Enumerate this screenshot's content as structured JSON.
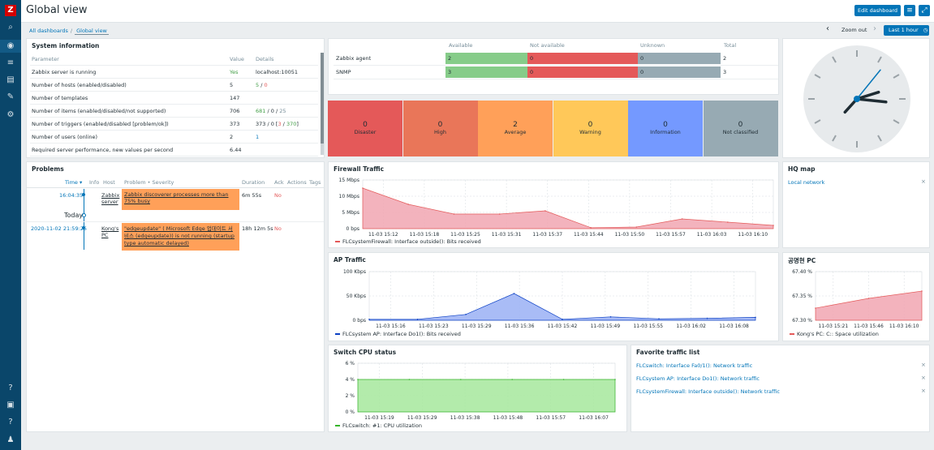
{
  "sidebar": {
    "logo": "Z",
    "items": [
      "⌕",
      "◉",
      "≡",
      "▤",
      "✎",
      "⚙"
    ],
    "bottom": [
      "?",
      "▣",
      "?",
      "♟"
    ]
  },
  "header": {
    "title": "Global view",
    "edit_label": "Edit dashboard",
    "list_icon": "≡",
    "fullscreen_icon": "⤢"
  },
  "breadcrumb": {
    "all": "All dashboards",
    "sep": "/",
    "current": "Global view"
  },
  "timebar": {
    "prev": "‹",
    "zoom": "Zoom out",
    "next": "›",
    "period": "Last 1 hour",
    "clock_icon": "◷"
  },
  "system_info": {
    "title": "System information",
    "head": {
      "param": "Parameter",
      "value": "Value",
      "details": "Details"
    },
    "rows": [
      {
        "param": "Zabbix server is running",
        "value": "Yes",
        "d1": "localhost:10051",
        "d2": "",
        "d3": "",
        "d4": "",
        "d5": ""
      },
      {
        "param": "Number of hosts (enabled/disabled)",
        "value": "5",
        "d1": "5",
        "d2": " / ",
        "d3": "0",
        "d4": "",
        "d5": ""
      },
      {
        "param": "Number of templates",
        "value": "147",
        "d1": "",
        "d2": "",
        "d3": "",
        "d4": "",
        "d5": ""
      },
      {
        "param": "Number of items (enabled/disabled/not supported)",
        "value": "706",
        "d1": "681",
        "d2": " / 0 / ",
        "d3": "25",
        "d4": "",
        "d5": ""
      },
      {
        "param": "Number of triggers (enabled/disabled [problem/ok])",
        "value": "373",
        "d1": "373 / 0 [",
        "d2": "3",
        "d3": " / ",
        "d4": "370",
        "d5": "]"
      },
      {
        "param": "Number of users (online)",
        "value": "2",
        "d1": "1",
        "d2": "",
        "d3": "",
        "d4": "",
        "d5": ""
      },
      {
        "param": "Required server performance, new values per second",
        "value": "6.44",
        "d1": "",
        "d2": "",
        "d3": "",
        "d4": "",
        "d5": ""
      }
    ]
  },
  "host_avail": {
    "cols": [
      "Available",
      "Not available",
      "Unknown",
      "Total"
    ],
    "rows": [
      {
        "name": "Zabbix agent",
        "available": "2",
        "not_available": "0",
        "unknown": "0",
        "total": "2"
      },
      {
        "name": "SNMP",
        "available": "3",
        "not_available": "0",
        "unknown": "0",
        "total": "3"
      }
    ]
  },
  "severity": [
    {
      "count": "0",
      "label": "Disaster",
      "color": "#e45959"
    },
    {
      "count": "0",
      "label": "High",
      "color": "#e97659"
    },
    {
      "count": "2",
      "label": "Average",
      "color": "#ffa059"
    },
    {
      "count": "0",
      "label": "Warning",
      "color": "#ffc859"
    },
    {
      "count": "0",
      "label": "Information",
      "color": "#7499ff"
    },
    {
      "count": "0",
      "label": "Not classified",
      "color": "#97aab3"
    }
  ],
  "clock": {
    "hour": 3,
    "minute": 12,
    "second": 7
  },
  "problems": {
    "title": "Problems",
    "head": {
      "time": "Time ▾",
      "info": "Info",
      "host": "Host",
      "problem": "Problem • Severity",
      "duration": "Duration",
      "ack": "Ack",
      "actions": "Actions",
      "tags": "Tags"
    },
    "today": "Today",
    "rows": [
      {
        "time": "16:04:35",
        "host": "Zabbix server",
        "problem": "Zabbix discoverer processes more than 75% busy",
        "duration": "6m 55s",
        "ack": "No"
      },
      {
        "time": "2020-11-02 21:59:25",
        "host": "Kong's PC",
        "problem": "\"edgeupdate\" ( Microsoft Edge 업데이트 서비스 (edgeupdate)) is not running (startup type automatic delayed)",
        "duration": "18h 12m 5s",
        "ack": "No"
      }
    ]
  },
  "firewall": {
    "title": "Firewall Traffic",
    "legend": "FLCsystemFirewall: Interface outside(): Bits received",
    "color": "#f1a6b2",
    "yticks": [
      "15 Mbps",
      "10 Mbps",
      "5 Mbps",
      "0 bps"
    ],
    "xticks": [
      "11-03 15:12",
      "11-03 15:18",
      "11-03 15:25",
      "11-03 15:31",
      "11-03 15:37",
      "11-03 15:44",
      "11-03 15:50",
      "11-03 15:57",
      "11-03 16:03",
      "11-03 16:10"
    ]
  },
  "hqmap": {
    "title": "HQ map",
    "link": "Local network",
    "close": "×"
  },
  "ap": {
    "title": "AP Traffic",
    "legend": "FLCsystem AP: Interface Do1(): Bits received",
    "color": "#9ab0f4",
    "yticks": [
      "100 Kbps",
      "50 Kbps",
      "0 bps"
    ],
    "xticks": [
      "11-03 15:16",
      "11-03 15:23",
      "11-03 15:29",
      "11-03 15:36",
      "11-03 15:42",
      "11-03 15:49",
      "11-03 15:55",
      "11-03 16:02",
      "11-03 16:08"
    ]
  },
  "kongpc": {
    "title": "공명현 PC",
    "legend": "Kong's PC: C:: Space utilization",
    "color": "#f1a6b2",
    "yticks": [
      "67.40 %",
      "67.35 %",
      "67.30 %"
    ],
    "xticks": [
      "11-03 15:21",
      "11-03 15:46",
      "11-03 16:10"
    ]
  },
  "cpu": {
    "title": "Switch CPU status",
    "legend": "FLCswitch: #1: CPU utilization",
    "color": "#a6e89c",
    "yticks": [
      "6 %",
      "4 %",
      "2 %",
      "0 %"
    ],
    "xticks": [
      "11-03 15:19",
      "11-03 15:29",
      "11-03 15:38",
      "11-03 15:48",
      "11-03 15:57",
      "11-03 16:07"
    ]
  },
  "fav": {
    "title": "Favorite traffic list",
    "items": [
      "FLCswitch: Interface Fa0/1(): Network traffic",
      "FLCsystem AP: Interface Do1(): Network traffic",
      "FLCsystemFirewall: Interface outside(): Network traffic"
    ],
    "close": "×"
  },
  "chart_data": [
    {
      "type": "area",
      "title": "Firewall Traffic",
      "x": [
        "11-03 15:12",
        "11-03 15:18",
        "11-03 15:25",
        "11-03 15:31",
        "11-03 15:37",
        "11-03 15:44",
        "11-03 15:50",
        "11-03 15:57",
        "11-03 16:03",
        "11-03 16:10"
      ],
      "series": [
        {
          "name": "FLCsystemFirewall: Interface outside(): Bits received",
          "values": [
            12.5,
            7.5,
            4.5,
            4.5,
            5.5,
            0.3,
            0.5,
            3.0,
            2.0,
            1.0
          ]
        }
      ],
      "yunit": "Mbps",
      "ylim": [
        0,
        15
      ]
    },
    {
      "type": "area",
      "title": "AP Traffic",
      "x": [
        "11-03 15:16",
        "11-03 15:23",
        "11-03 15:29",
        "11-03 15:36",
        "11-03 15:42",
        "11-03 15:49",
        "11-03 15:55",
        "11-03 16:02",
        "11-03 16:08"
      ],
      "series": [
        {
          "name": "FLCsystem AP: Interface Do1(): Bits received",
          "values": [
            2,
            2,
            12,
            55,
            2,
            7,
            3,
            4,
            6
          ]
        }
      ],
      "yunit": "Kbps",
      "ylim": [
        0,
        100
      ]
    },
    {
      "type": "area",
      "title": "공명현 PC",
      "x": [
        "11-03 15:21",
        "11-03 15:46",
        "11-03 16:10"
      ],
      "series": [
        {
          "name": "Kong's PC: C:: Space utilization",
          "values": [
            67.325,
            67.345,
            67.36
          ]
        }
      ],
      "yunit": "%",
      "ylim": [
        67.3,
        67.4
      ]
    },
    {
      "type": "area",
      "title": "Switch CPU status",
      "x": [
        "11-03 15:19",
        "11-03 15:29",
        "11-03 15:38",
        "11-03 15:48",
        "11-03 15:57",
        "11-03 16:07"
      ],
      "series": [
        {
          "name": "FLCswitch: #1: CPU utilization",
          "values": [
            4,
            4,
            4,
            4,
            4,
            4
          ]
        }
      ],
      "yunit": "%",
      "ylim": [
        0,
        6
      ]
    }
  ]
}
